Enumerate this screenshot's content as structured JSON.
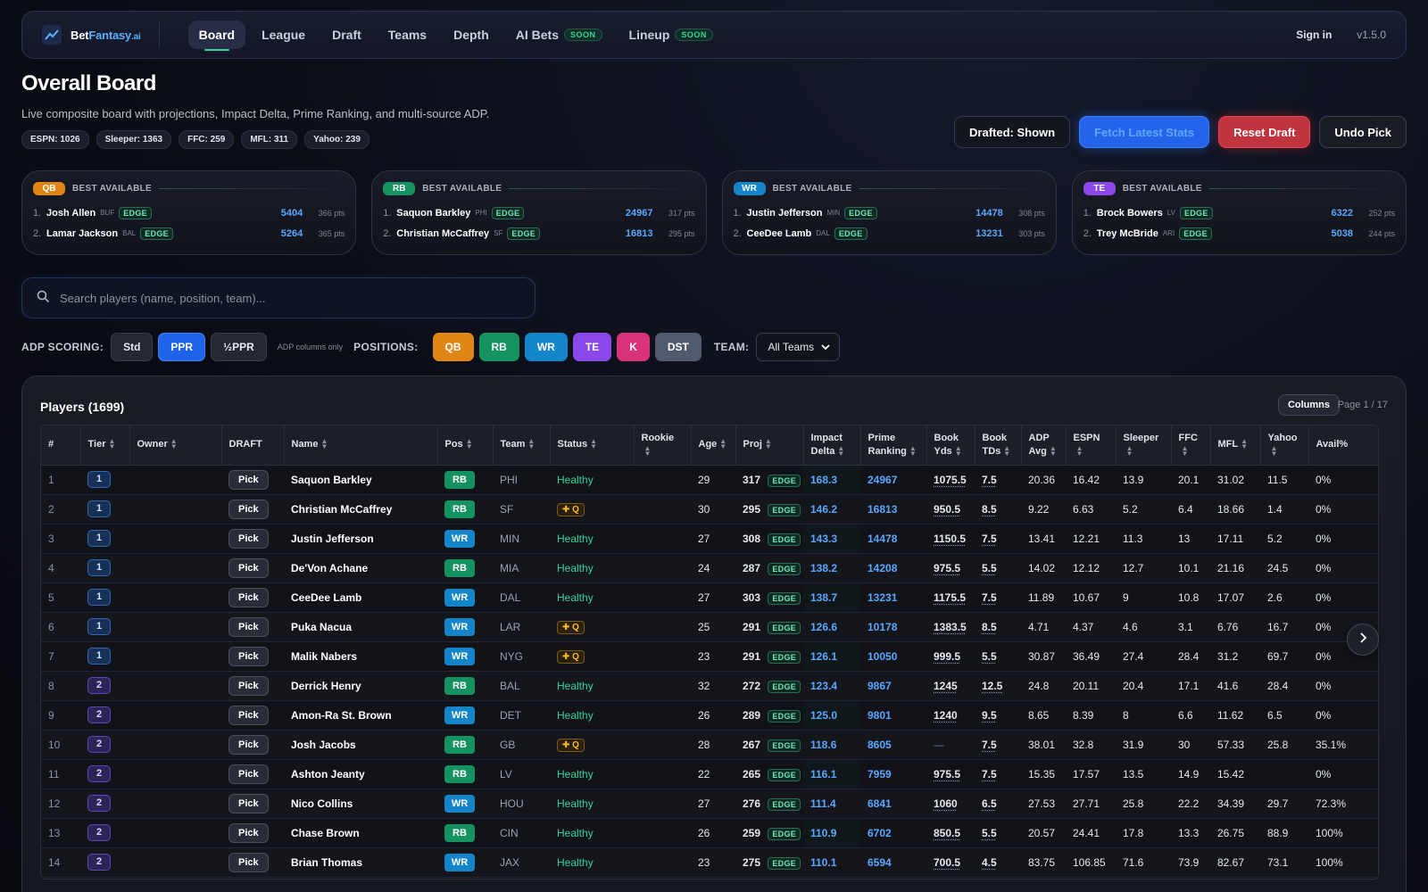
{
  "brand": {
    "name_part1": "Bet",
    "name_part2": "Fantasy",
    "name_part3": ".ai"
  },
  "nav": {
    "items": [
      {
        "label": "Board",
        "active": true
      },
      {
        "label": "League"
      },
      {
        "label": "Draft"
      },
      {
        "label": "Teams"
      },
      {
        "label": "Depth"
      },
      {
        "label": "AI Bets",
        "badge": "SOON"
      },
      {
        "label": "Lineup",
        "badge": "SOON"
      }
    ],
    "signin": "Sign in",
    "version": "v1.5.0"
  },
  "header": {
    "title": "Overall Board",
    "subtitle": "Live composite board with projections, Impact Delta, Prime Ranking, and multi-source ADP.",
    "chips": [
      "ESPN: 1026",
      "Sleeper: 1363",
      "FFC: 259",
      "MFL: 311",
      "Yahoo: 239"
    ]
  },
  "actions": {
    "drafted": "Drafted: Shown",
    "fetch": "Fetch Latest Stats",
    "reset": "Reset Draft",
    "undo": "Undo Pick"
  },
  "best_available": {
    "title": "BEST AVAILABLE",
    "edge": "EDGE",
    "cards": [
      {
        "pos": "QB",
        "players": [
          {
            "rank": "1.",
            "name": "Josh Allen",
            "team": "BUF",
            "value": "5404",
            "pts": "366 pts"
          },
          {
            "rank": "2.",
            "name": "Lamar Jackson",
            "team": "BAL",
            "value": "5264",
            "pts": "365 pts"
          }
        ]
      },
      {
        "pos": "RB",
        "players": [
          {
            "rank": "1.",
            "name": "Saquon Barkley",
            "team": "PHI",
            "value": "24967",
            "pts": "317 pts"
          },
          {
            "rank": "2.",
            "name": "Christian McCaffrey",
            "team": "SF",
            "value": "16813",
            "pts": "295 pts"
          }
        ]
      },
      {
        "pos": "WR",
        "players": [
          {
            "rank": "1.",
            "name": "Justin Jefferson",
            "team": "MIN",
            "value": "14478",
            "pts": "308 pts"
          },
          {
            "rank": "2.",
            "name": "CeeDee Lamb",
            "team": "DAL",
            "value": "13231",
            "pts": "303 pts"
          }
        ]
      },
      {
        "pos": "TE",
        "players": [
          {
            "rank": "1.",
            "name": "Brock Bowers",
            "team": "LV",
            "value": "6322",
            "pts": "252 pts"
          },
          {
            "rank": "2.",
            "name": "Trey McBride",
            "team": "ARI",
            "value": "5038",
            "pts": "244 pts"
          }
        ]
      }
    ]
  },
  "search": {
    "placeholder": "Search players (name, position, team)..."
  },
  "filters": {
    "adp_label": "ADP SCORING:",
    "scoring": [
      "Std",
      "PPR",
      "½PPR"
    ],
    "scoring_selected": "PPR",
    "adp_note": "ADP columns only",
    "positions_label": "POSITIONS:",
    "positions": [
      "QB",
      "RB",
      "WR",
      "TE",
      "K",
      "DST"
    ],
    "team_label": "TEAM:",
    "team_value": "All Teams"
  },
  "players_panel": {
    "title": "Players (1699)",
    "columns_button": "Columns",
    "page_info": "Page 1 / 17",
    "headers": [
      "#",
      "Tier",
      "Owner",
      "DRAFT",
      "Name",
      "Pos",
      "Team",
      "Status",
      "Rookie",
      "Age",
      "Proj",
      "Impact Delta",
      "Prime Ranking",
      "Book Yds",
      "Book TDs",
      "ADP Avg",
      "ESPN",
      "Sleeper",
      "FFC",
      "MFL",
      "Yahoo",
      "Avail%"
    ],
    "pick_label": "Pick",
    "edge_label": "EDGE",
    "rows": [
      {
        "n": "1",
        "tier": "1",
        "name": "Saquon Barkley",
        "pos": "RB",
        "team": "PHI",
        "status": "Healthy",
        "age": "29",
        "proj": "317",
        "impact": "168.3",
        "prime": "24967",
        "yds": "1075.5",
        "tds": "7.5",
        "adp": "20.36",
        "espn": "16.42",
        "sleeper": "13.9",
        "ffc": "20.1",
        "mfl": "31.02",
        "yahoo": "11.5",
        "avail": "0%"
      },
      {
        "n": "2",
        "tier": "1",
        "name": "Christian McCaffrey",
        "pos": "RB",
        "team": "SF",
        "status": "Q",
        "age": "30",
        "proj": "295",
        "impact": "146.2",
        "prime": "16813",
        "yds": "950.5",
        "tds": "8.5",
        "adp": "9.22",
        "espn": "6.63",
        "sleeper": "5.2",
        "ffc": "6.4",
        "mfl": "18.66",
        "yahoo": "1.4",
        "avail": "0%"
      },
      {
        "n": "3",
        "tier": "1",
        "name": "Justin Jefferson",
        "pos": "WR",
        "team": "MIN",
        "status": "Healthy",
        "age": "27",
        "proj": "308",
        "impact": "143.3",
        "prime": "14478",
        "yds": "1150.5",
        "tds": "7.5",
        "adp": "13.41",
        "espn": "12.21",
        "sleeper": "11.3",
        "ffc": "13",
        "mfl": "17.11",
        "yahoo": "5.2",
        "avail": "0%"
      },
      {
        "n": "4",
        "tier": "1",
        "name": "De'Von Achane",
        "pos": "RB",
        "team": "MIA",
        "status": "Healthy",
        "age": "24",
        "proj": "287",
        "impact": "138.2",
        "prime": "14208",
        "yds": "975.5",
        "tds": "5.5",
        "adp": "14.02",
        "espn": "12.12",
        "sleeper": "12.7",
        "ffc": "10.1",
        "mfl": "21.16",
        "yahoo": "24.5",
        "avail": "0%"
      },
      {
        "n": "5",
        "tier": "1",
        "name": "CeeDee Lamb",
        "pos": "WR",
        "team": "DAL",
        "status": "Healthy",
        "age": "27",
        "proj": "303",
        "impact": "138.7",
        "prime": "13231",
        "yds": "1175.5",
        "tds": "7.5",
        "adp": "11.89",
        "espn": "10.67",
        "sleeper": "9",
        "ffc": "10.8",
        "mfl": "17.07",
        "yahoo": "2.6",
        "avail": "0%"
      },
      {
        "n": "6",
        "tier": "1",
        "name": "Puka Nacua",
        "pos": "WR",
        "team": "LAR",
        "status": "Q",
        "age": "25",
        "proj": "291",
        "impact": "126.6",
        "prime": "10178",
        "yds": "1383.5",
        "tds": "8.5",
        "adp": "4.71",
        "espn": "4.37",
        "sleeper": "4.6",
        "ffc": "3.1",
        "mfl": "6.76",
        "yahoo": "16.7",
        "avail": "0%"
      },
      {
        "n": "7",
        "tier": "1",
        "name": "Malik Nabers",
        "pos": "WR",
        "team": "NYG",
        "status": "Q",
        "age": "23",
        "proj": "291",
        "impact": "126.1",
        "prime": "10050",
        "yds": "999.5",
        "tds": "5.5",
        "adp": "30.87",
        "espn": "36.49",
        "sleeper": "27.4",
        "ffc": "28.4",
        "mfl": "31.2",
        "yahoo": "69.7",
        "avail": "0%"
      },
      {
        "n": "8",
        "tier": "2",
        "name": "Derrick Henry",
        "pos": "RB",
        "team": "BAL",
        "status": "Healthy",
        "age": "32",
        "proj": "272",
        "impact": "123.4",
        "prime": "9867",
        "yds": "1245",
        "tds": "12.5",
        "adp": "24.8",
        "espn": "20.11",
        "sleeper": "20.4",
        "ffc": "17.1",
        "mfl": "41.6",
        "yahoo": "28.4",
        "avail": "0%"
      },
      {
        "n": "9",
        "tier": "2",
        "name": "Amon-Ra St. Brown",
        "pos": "WR",
        "team": "DET",
        "status": "Healthy",
        "age": "26",
        "proj": "289",
        "impact": "125.0",
        "prime": "9801",
        "yds": "1240",
        "tds": "9.5",
        "adp": "8.65",
        "espn": "8.39",
        "sleeper": "8",
        "ffc": "6.6",
        "mfl": "11.62",
        "yahoo": "6.5",
        "avail": "0%"
      },
      {
        "n": "10",
        "tier": "2",
        "name": "Josh Jacobs",
        "pos": "RB",
        "team": "GB",
        "status": "Q",
        "age": "28",
        "proj": "267",
        "impact": "118.6",
        "prime": "8605",
        "yds": "—",
        "tds": "7.5",
        "adp": "38.01",
        "espn": "32.8",
        "sleeper": "31.9",
        "ffc": "30",
        "mfl": "57.33",
        "yahoo": "25.8",
        "avail": "35.1%"
      },
      {
        "n": "11",
        "tier": "2",
        "name": "Ashton Jeanty",
        "pos": "RB",
        "team": "LV",
        "status": "Healthy",
        "age": "22",
        "proj": "265",
        "impact": "116.1",
        "prime": "7959",
        "yds": "975.5",
        "tds": "7.5",
        "adp": "15.35",
        "espn": "17.57",
        "sleeper": "13.5",
        "ffc": "14.9",
        "mfl": "15.42",
        "yahoo": "",
        "avail": "0%"
      },
      {
        "n": "12",
        "tier": "2",
        "name": "Nico Collins",
        "pos": "WR",
        "team": "HOU",
        "status": "Healthy",
        "age": "27",
        "proj": "276",
        "impact": "111.4",
        "prime": "6841",
        "yds": "1060",
        "tds": "6.5",
        "adp": "27.53",
        "espn": "27.71",
        "sleeper": "25.8",
        "ffc": "22.2",
        "mfl": "34.39",
        "yahoo": "29.7",
        "avail": "72.3%"
      },
      {
        "n": "13",
        "tier": "2",
        "name": "Chase Brown",
        "pos": "RB",
        "team": "CIN",
        "status": "Healthy",
        "age": "26",
        "proj": "259",
        "impact": "110.9",
        "prime": "6702",
        "yds": "850.5",
        "tds": "5.5",
        "adp": "20.57",
        "espn": "24.41",
        "sleeper": "17.8",
        "ffc": "13.3",
        "mfl": "26.75",
        "yahoo": "88.9",
        "avail": "100%"
      },
      {
        "n": "14",
        "tier": "2",
        "name": "Brian Thomas",
        "pos": "WR",
        "team": "JAX",
        "status": "Healthy",
        "age": "23",
        "proj": "275",
        "impact": "110.1",
        "prime": "6594",
        "yds": "700.5",
        "tds": "4.5",
        "adp": "83.75",
        "espn": "106.85",
        "sleeper": "71.6",
        "ffc": "73.9",
        "mfl": "82.67",
        "yahoo": "73.1",
        "avail": "100%"
      }
    ]
  },
  "colors": {
    "accent_blue": "#2563eb",
    "accent_red": "#c0343f",
    "green": "#34d399",
    "qb": "#e08616",
    "rb": "#14925f",
    "wr": "#1485c8",
    "te": "#8b48e8",
    "k": "#d9327b",
    "dst": "#505a6c"
  }
}
